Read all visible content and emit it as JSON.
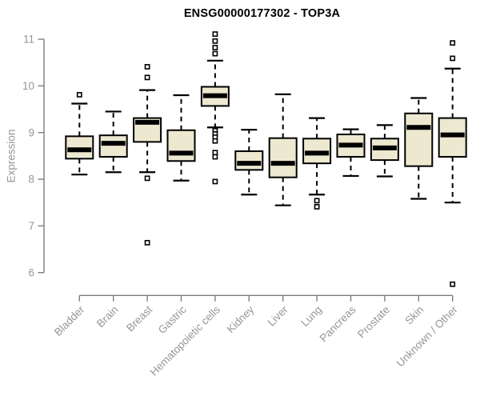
{
  "chart_data": {
    "type": "boxplot",
    "title": "ENSG00000177302 - TOP3A",
    "ylabel": "Expression",
    "xlabel": "",
    "ylim": [
      5.5,
      11.2
    ],
    "yticks": [
      6,
      7,
      8,
      9,
      10,
      11
    ],
    "grid": false,
    "legend": "none",
    "categories": [
      "Bladder",
      "Brain",
      "Breast",
      "Gastric",
      "Hematopoietic cells",
      "Kidney",
      "Liver",
      "Lung",
      "Pancreas",
      "Prostate",
      "Skin",
      "Unknown / Other"
    ],
    "series": [
      {
        "name": "Bladder",
        "whisker_low": 8.1,
        "q1": 8.44,
        "median": 8.63,
        "q3": 8.92,
        "whisker_high": 9.62,
        "outliers": [
          9.81
        ]
      },
      {
        "name": "Brain",
        "whisker_low": 8.15,
        "q1": 8.48,
        "median": 8.77,
        "q3": 8.94,
        "whisker_high": 9.45,
        "outliers": []
      },
      {
        "name": "Breast",
        "whisker_low": 8.15,
        "q1": 8.8,
        "median": 9.22,
        "q3": 9.31,
        "whisker_high": 9.91,
        "outliers": [
          10.41,
          10.18,
          8.02,
          6.64
        ]
      },
      {
        "name": "Gastric",
        "whisker_low": 7.97,
        "q1": 8.39,
        "median": 8.56,
        "q3": 9.05,
        "whisker_high": 9.8,
        "outliers": []
      },
      {
        "name": "Hematopoietic cells",
        "whisker_low": 9.11,
        "q1": 9.57,
        "median": 9.79,
        "q3": 9.98,
        "whisker_high": 10.54,
        "outliers": [
          11.11,
          10.96,
          10.82,
          10.69,
          9.04,
          8.97,
          8.9,
          8.82,
          8.57,
          8.48,
          7.95
        ]
      },
      {
        "name": "Kidney",
        "whisker_low": 7.67,
        "q1": 8.2,
        "median": 8.34,
        "q3": 8.6,
        "whisker_high": 9.06,
        "outliers": []
      },
      {
        "name": "Liver",
        "whisker_low": 7.44,
        "q1": 8.04,
        "median": 8.34,
        "q3": 8.88,
        "whisker_high": 9.82,
        "outliers": []
      },
      {
        "name": "Lung",
        "whisker_low": 7.67,
        "q1": 8.34,
        "median": 8.56,
        "q3": 8.87,
        "whisker_high": 9.31,
        "outliers": [
          7.54,
          7.41
        ]
      },
      {
        "name": "Pancreas",
        "whisker_low": 8.07,
        "q1": 8.48,
        "median": 8.73,
        "q3": 8.96,
        "whisker_high": 9.07,
        "outliers": []
      },
      {
        "name": "Prostate",
        "whisker_low": 8.06,
        "q1": 8.41,
        "median": 8.67,
        "q3": 8.87,
        "whisker_high": 9.16,
        "outliers": []
      },
      {
        "name": "Skin",
        "whisker_low": 7.58,
        "q1": 8.28,
        "median": 9.11,
        "q3": 9.41,
        "whisker_high": 9.74,
        "outliers": []
      },
      {
        "name": "Unknown / Other",
        "whisker_low": 7.5,
        "q1": 8.48,
        "median": 8.95,
        "q3": 9.31,
        "whisker_high": 10.37,
        "outliers": [
          10.92,
          10.59,
          5.75
        ]
      }
    ],
    "colors": {
      "box_fill": "#EDE8D0",
      "box_stroke": "#000000",
      "median": "#000000",
      "whisker": "#000000",
      "outlier_stroke": "#000000",
      "axis_line": "#7E7E7E",
      "axis_text": "#969696",
      "title": "#000000",
      "background": "#FFFFFF"
    }
  }
}
